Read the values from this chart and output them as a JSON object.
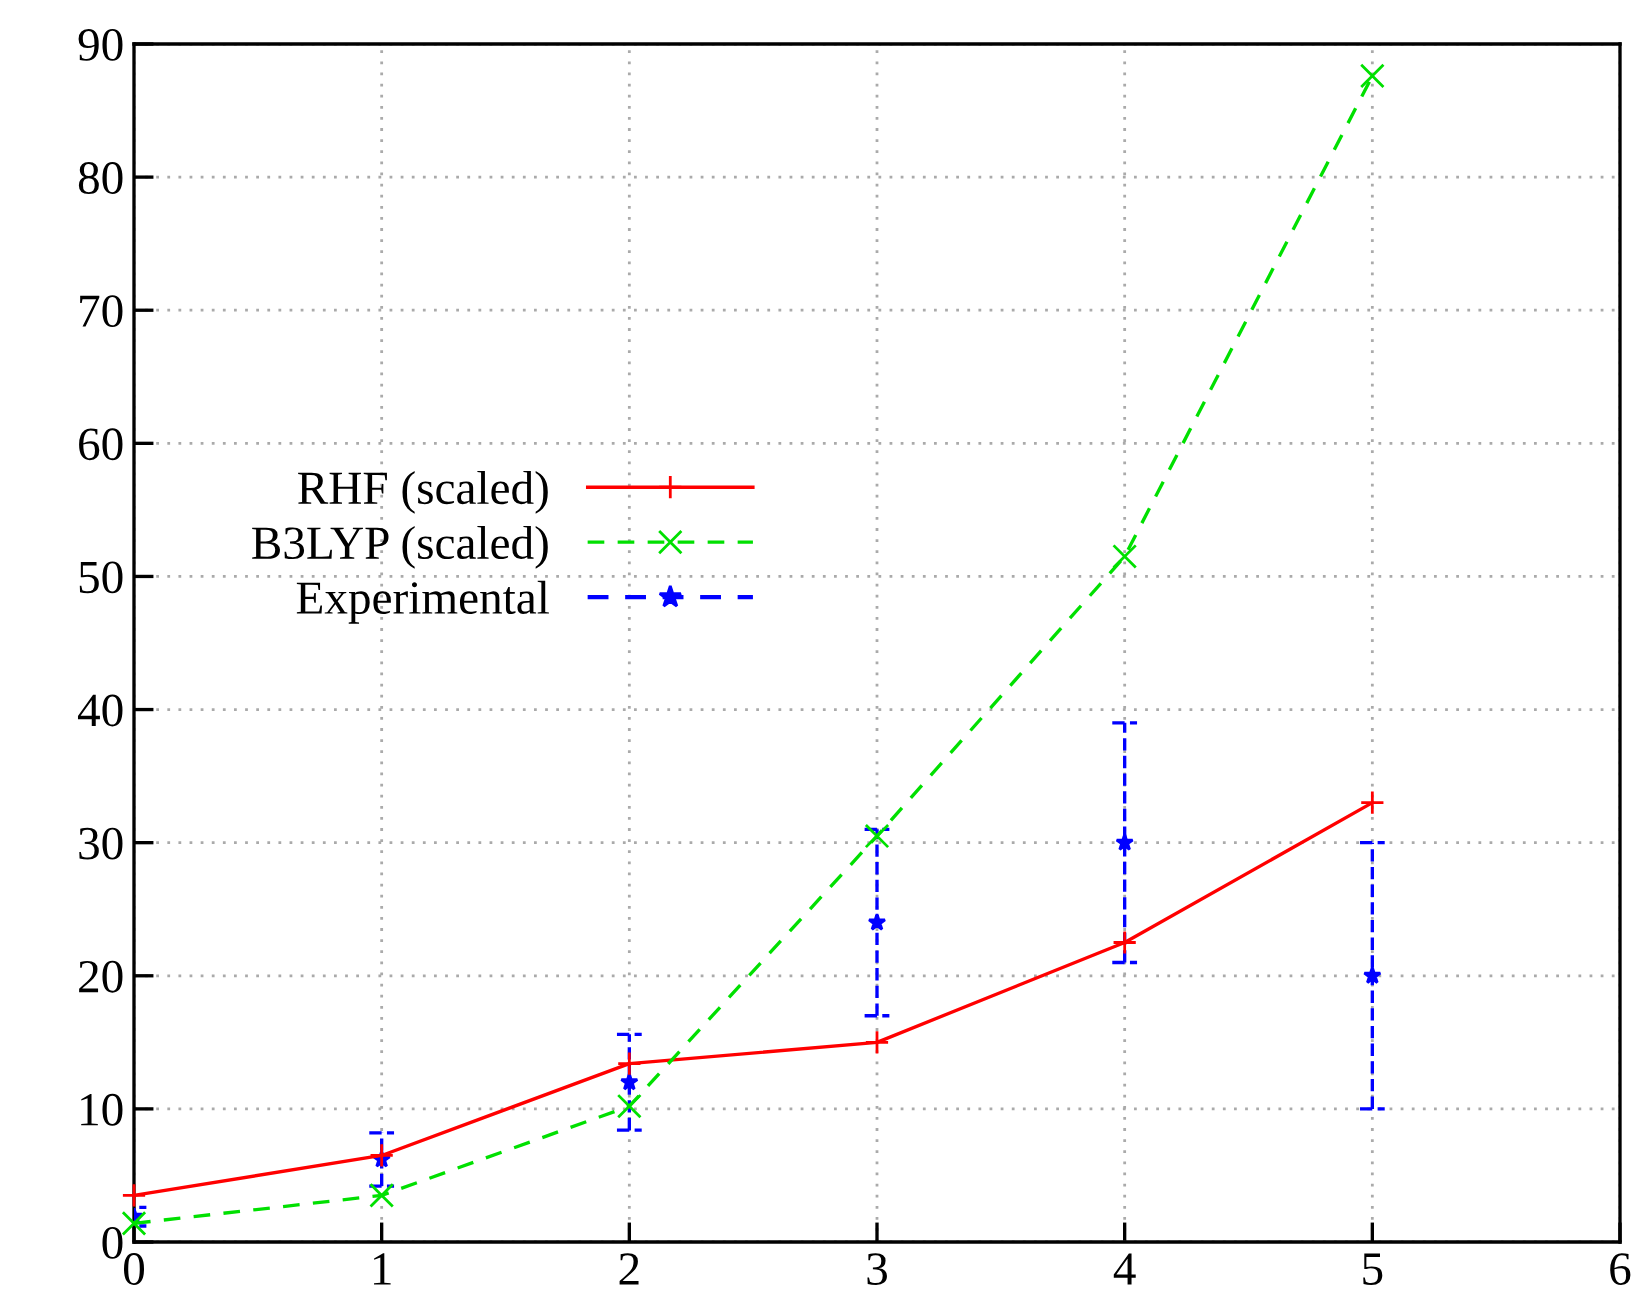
{
  "chart_data": {
    "type": "line",
    "x": [
      0,
      1,
      2,
      3,
      4,
      5
    ],
    "xlim": [
      0,
      6
    ],
    "xticks": [
      0,
      1,
      2,
      3,
      4,
      5,
      6
    ],
    "ylim": [
      0,
      90
    ],
    "yticks": [
      0,
      10,
      20,
      30,
      40,
      50,
      60,
      70,
      80,
      90
    ],
    "grid": true,
    "legend": "center left",
    "series": [
      {
        "name": "RHF (scaled)",
        "color": "#ff0000",
        "values": [
          3.5,
          6.5,
          13.4,
          15.0,
          22.5,
          33.0
        ],
        "line_style": "solid",
        "marker": "plus"
      },
      {
        "name": "B3LYP (scaled)",
        "color": "#00e000",
        "values": [
          1.4,
          3.5,
          10.2,
          30.5,
          51.5,
          87.6
        ],
        "line_style": "dashed",
        "marker": "cross"
      },
      {
        "name": "Experimental",
        "type": "scatter",
        "color": "#0000ff",
        "values": [
          1.9,
          6.2,
          12.0,
          24.0,
          30.0,
          20.0
        ],
        "errors": [
          0.7,
          2.0,
          3.6,
          7.0,
          9.0,
          10.0
        ],
        "line_style": "dashed",
        "marker": "star"
      }
    ]
  }
}
